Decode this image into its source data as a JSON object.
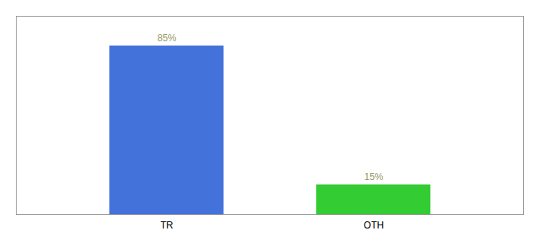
{
  "chart_data": {
    "type": "bar",
    "categories": [
      "TR",
      "OTH"
    ],
    "values": [
      85,
      15
    ],
    "value_labels": [
      "85%",
      "15%"
    ],
    "colors": [
      "#4472db",
      "#33cc33"
    ],
    "ylim": [
      0,
      100
    ],
    "data_labels": true,
    "tick_labels": "x",
    "grid": false
  }
}
